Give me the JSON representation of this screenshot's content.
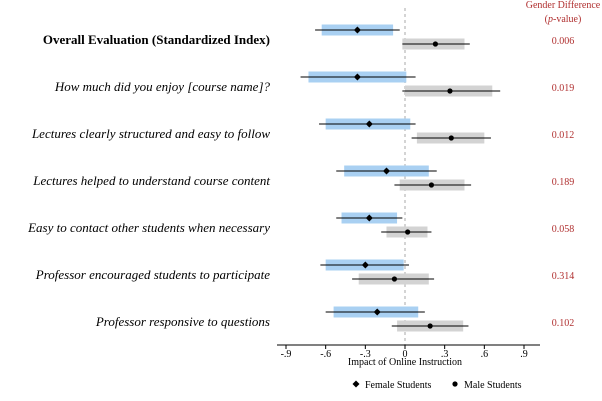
{
  "chart_data": {
    "type": "forest",
    "xlabel": "Impact of Online Instruction",
    "xlim": [
      -0.95,
      0.95
    ],
    "xticks": [
      {
        "value": -0.9,
        "label": "-.9"
      },
      {
        "value": -0.6,
        "label": "-.6"
      },
      {
        "value": -0.3,
        "label": "-.3"
      },
      {
        "value": 0,
        "label": "0"
      },
      {
        "value": 0.3,
        "label": ".3"
      },
      {
        "value": 0.6,
        "label": ".6"
      },
      {
        "value": 0.9,
        "label": ".9"
      }
    ],
    "reference_line": 0,
    "pvalue_header": "Gender Difference",
    "pvalue_header_p": "p",
    "pvalue_header_suffix": "-value)",
    "rows": [
      {
        "label": "Overall Evaluation (Standardized Index)",
        "style": "bold",
        "pvalue": "0.006",
        "female": {
          "estimate": -0.36,
          "ci90": [
            -0.63,
            -0.09
          ],
          "ci95": [
            -0.68,
            -0.04
          ]
        },
        "male": {
          "estimate": 0.23,
          "ci90": [
            -0.02,
            0.45
          ],
          "ci95": [
            -0.02,
            0.49
          ]
        }
      },
      {
        "label": "How much did you enjoy [course name]?",
        "style": "italic",
        "pvalue": "0.019",
        "female": {
          "estimate": -0.36,
          "ci90": [
            -0.73,
            0.01
          ],
          "ci95": [
            -0.79,
            0.08
          ]
        },
        "male": {
          "estimate": 0.34,
          "ci90": [
            0.0,
            0.66
          ],
          "ci95": [
            -0.02,
            0.72
          ]
        }
      },
      {
        "label": "Lectures clearly structured and easy to follow",
        "style": "italic",
        "pvalue": "0.012",
        "female": {
          "estimate": -0.27,
          "ci90": [
            -0.6,
            0.04
          ],
          "ci95": [
            -0.65,
            0.08
          ]
        },
        "male": {
          "estimate": 0.35,
          "ci90": [
            0.09,
            0.6
          ],
          "ci95": [
            0.05,
            0.65
          ]
        }
      },
      {
        "label": "Lectures helped to understand course content",
        "style": "italic",
        "pvalue": "0.189",
        "female": {
          "estimate": -0.14,
          "ci90": [
            -0.46,
            0.18
          ],
          "ci95": [
            -0.52,
            0.24
          ]
        },
        "male": {
          "estimate": 0.2,
          "ci90": [
            -0.04,
            0.45
          ],
          "ci95": [
            -0.08,
            0.5
          ]
        }
      },
      {
        "label": "Easy to contact other students when necessary",
        "style": "italic",
        "pvalue": "0.058",
        "female": {
          "estimate": -0.27,
          "ci90": [
            -0.48,
            -0.06
          ],
          "ci95": [
            -0.52,
            -0.02
          ]
        },
        "male": {
          "estimate": 0.02,
          "ci90": [
            -0.14,
            0.17
          ],
          "ci95": [
            -0.18,
            0.2
          ]
        }
      },
      {
        "label": "Professor encouraged students to participate",
        "style": "italic",
        "pvalue": "0.314",
        "female": {
          "estimate": -0.3,
          "ci90": [
            -0.6,
            -0.01
          ],
          "ci95": [
            -0.64,
            0.03
          ]
        },
        "male": {
          "estimate": -0.08,
          "ci90": [
            -0.35,
            0.18
          ],
          "ci95": [
            -0.4,
            0.22
          ]
        }
      },
      {
        "label": "Professor responsive to questions",
        "style": "italic",
        "pvalue": "0.102",
        "female": {
          "estimate": -0.21,
          "ci90": [
            -0.54,
            0.1
          ],
          "ci95": [
            -0.6,
            0.15
          ]
        },
        "male": {
          "estimate": 0.19,
          "ci90": [
            -0.06,
            0.44
          ],
          "ci95": [
            -0.1,
            0.48
          ]
        }
      }
    ],
    "legend": {
      "position": "bottom",
      "items": [
        {
          "name": "Female Students",
          "marker": "diamond",
          "bar_color": "#a9d0f2"
        },
        {
          "name": "Male Students",
          "marker": "circle",
          "bar_color": "#d3d3d3"
        }
      ]
    },
    "colors": {
      "female_bar": "#a9d0f2",
      "male_bar": "#d3d3d3",
      "pvalue": "#b03030",
      "ref_line": "#aaaaaa",
      "line": "#000000"
    }
  }
}
